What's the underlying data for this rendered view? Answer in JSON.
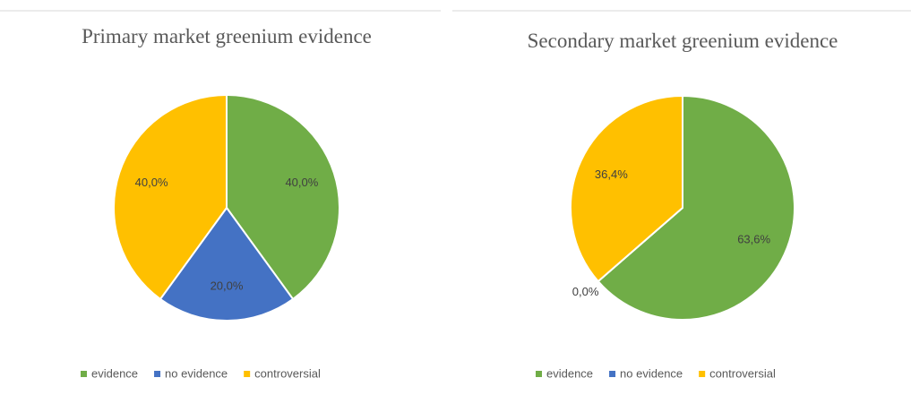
{
  "chart_data": [
    {
      "type": "pie",
      "title": "Primary market greenium evidence",
      "categories": [
        "evidence",
        "no evidence",
        "controversial"
      ],
      "values": [
        40,
        20,
        40
      ],
      "value_labels": [
        "40,0%",
        "20,0%",
        "40,0%"
      ],
      "colors": [
        "#70ad47",
        "#4472c4",
        "#ffc000"
      ]
    },
    {
      "type": "pie",
      "title": "Secondary market greenium evidence",
      "categories": [
        "evidence",
        "no evidence",
        "controversial"
      ],
      "values": [
        63.6,
        0,
        36.4
      ],
      "value_labels": [
        "63,6%",
        "0,0%",
        "36,4%"
      ],
      "colors": [
        "#70ad47",
        "#4472c4",
        "#ffc000"
      ]
    }
  ]
}
